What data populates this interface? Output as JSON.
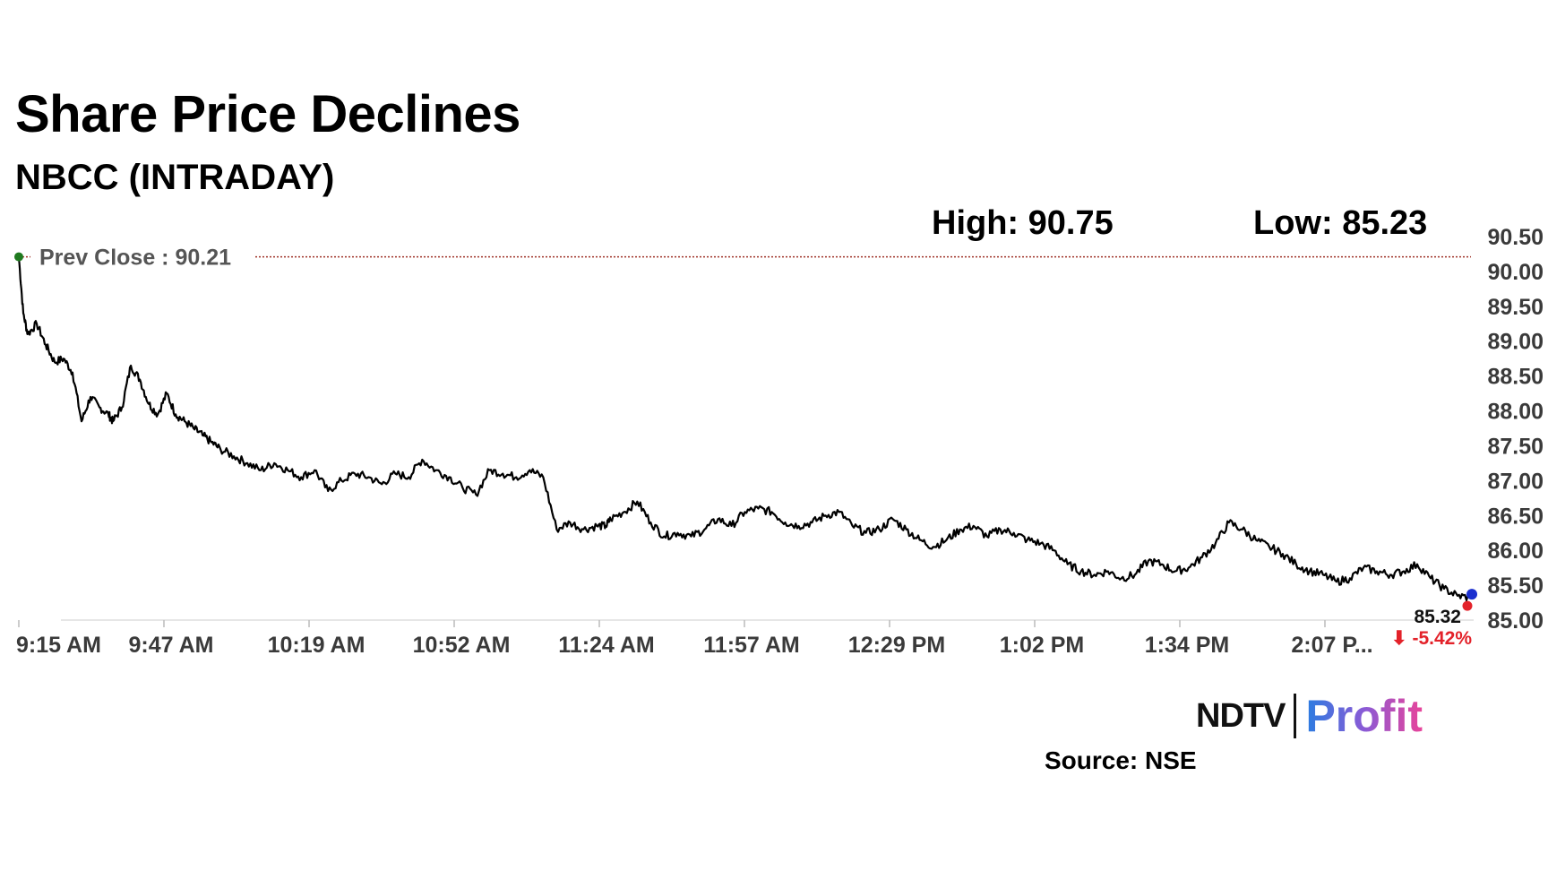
{
  "title": "Share Price Declines",
  "subtitle": "NBCC (INTRADAY)",
  "high_label": "High: 90.75",
  "low_label": "Low: 85.23",
  "prev_close_label": "Prev Close : 90.21",
  "last_price_label": "85.32",
  "change_label": "⬇ -5.42%",
  "source_label": "Source: NSE",
  "brand": {
    "ndtv": "NDTV",
    "profit": "Profit"
  },
  "colors": {
    "line": "#000000",
    "prev_close_line": "#a0342a",
    "start_dot": "#1f7a1f",
    "end_dot_low": "#e3222a",
    "end_dot_last": "#1b2fcf",
    "change": "#e3222a",
    "axis_text": "#3a3a3a"
  },
  "chart_data": {
    "type": "line",
    "title": "Share Price Declines",
    "subtitle": "NBCC (INTRADAY)",
    "x_tick_labels": [
      "9:15 AM",
      "9:47 AM",
      "10:19 AM",
      "10:52 AM",
      "11:24 AM",
      "11:57 AM",
      "12:29 PM",
      "1:02 PM",
      "1:34 PM",
      "2:07 P..."
    ],
    "y_tick_labels": [
      "90.50",
      "90.00",
      "89.50",
      "89.00",
      "88.50",
      "88.00",
      "87.50",
      "87.00",
      "86.50",
      "86.00",
      "85.50",
      "85.00"
    ],
    "ylim": [
      85.0,
      90.5
    ],
    "x_range_minutes": [
      0,
      324
    ],
    "prev_close": 90.21,
    "high": 90.75,
    "low": 85.23,
    "last": 85.32,
    "change_pct": -5.42,
    "grid": false,
    "series": [
      {
        "x": [
          0,
          1,
          2,
          4,
          6,
          8,
          10,
          12,
          14,
          16,
          18,
          20,
          21,
          23,
          25,
          27,
          29,
          31,
          33,
          35,
          37,
          39,
          41,
          43,
          45,
          48,
          51,
          54,
          57,
          60,
          63,
          66,
          69,
          72,
          75,
          78,
          81,
          84,
          87,
          90,
          93,
          96,
          99,
          102,
          105,
          108,
          111,
          114,
          117,
          120,
          123,
          126,
          129,
          131,
          132,
          135,
          138,
          141,
          144,
          147,
          150,
          153,
          156,
          159,
          162,
          165,
          168,
          171,
          174,
          177,
          180,
          183,
          186,
          189,
          192,
          195,
          198,
          201,
          204,
          207,
          210,
          213,
          216,
          219,
          222,
          225,
          228,
          231,
          234,
          237,
          240,
          243,
          246,
          249,
          252,
          255,
          258,
          261,
          264,
          267,
          270,
          273,
          276,
          279,
          282,
          285,
          288,
          291,
          294,
          297,
          300,
          303,
          306,
          309,
          312,
          315,
          318,
          321,
          324
        ],
        "y": [
          90.21,
          89.4,
          89.1,
          89.25,
          88.95,
          88.7,
          88.75,
          88.55,
          87.85,
          88.2,
          88.05,
          87.95,
          87.85,
          88.05,
          88.65,
          88.45,
          88.1,
          87.95,
          88.25,
          87.95,
          87.85,
          87.75,
          87.65,
          87.55,
          87.45,
          87.35,
          87.25,
          87.15,
          87.25,
          87.15,
          87.05,
          87.15,
          86.85,
          87.0,
          87.1,
          87.05,
          86.95,
          87.1,
          87.05,
          87.3,
          87.15,
          87.05,
          86.9,
          86.8,
          87.15,
          87.1,
          87.05,
          87.15,
          87.05,
          86.3,
          86.4,
          86.3,
          86.35,
          86.35,
          86.45,
          86.55,
          86.7,
          86.4,
          86.2,
          86.25,
          86.2,
          86.3,
          86.45,
          86.35,
          86.55,
          86.6,
          86.55,
          86.4,
          86.35,
          86.4,
          86.5,
          86.55,
          86.35,
          86.25,
          86.3,
          86.45,
          86.3,
          86.15,
          86.05,
          86.15,
          86.3,
          86.35,
          86.2,
          86.3,
          86.25,
          86.15,
          86.1,
          86.0,
          85.8,
          85.7,
          85.65,
          85.7,
          85.6,
          85.65,
          85.85,
          85.8,
          85.7,
          85.75,
          85.9,
          86.1,
          86.4,
          86.3,
          86.15,
          86.05,
          85.95,
          85.8,
          85.7,
          85.65,
          85.55,
          85.6,
          85.75,
          85.7,
          85.65,
          85.7,
          85.8,
          85.6,
          85.45,
          85.35,
          85.32
        ]
      }
    ]
  }
}
